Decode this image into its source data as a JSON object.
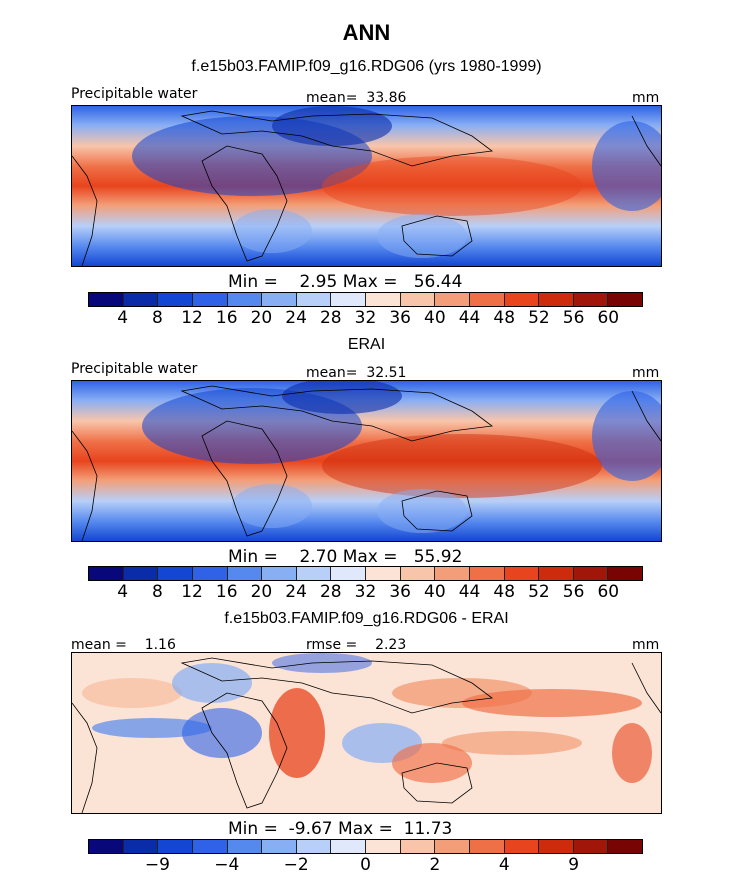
{
  "title": "ANN",
  "colors": {
    "abs_scale": [
      "#08087a",
      "#0a2ca8",
      "#1346d2",
      "#2f62e6",
      "#5689ee",
      "#88aef4",
      "#b8cff8",
      "#dfe9fb",
      "#fbe3d6",
      "#f8c5ab",
      "#f39e78",
      "#ef7047",
      "#e8441d",
      "#ce2a0c",
      "#a01608",
      "#780404"
    ],
    "diff_scale": [
      "#08087a",
      "#0a2ca8",
      "#1346d2",
      "#2f62e6",
      "#5689ee",
      "#88aef4",
      "#b8cff8",
      "#dfe9fb",
      "#fbe3d6",
      "#f8c5ab",
      "#f39e78",
      "#ef7047",
      "#e8441d",
      "#ce2a0c",
      "#a01608",
      "#780404"
    ]
  },
  "chart_data": [
    {
      "type": "heatmap",
      "title": "f.e15b03.FAMIP.f09_g16.RDG06 (yrs 1980-1999)",
      "variable": "Precipitable water",
      "mean_label": "mean=",
      "mean_value": "33.86",
      "units": "mm",
      "min_label": "Min =",
      "min_value": "2.95",
      "max_label": "Max =",
      "max_value": "56.44",
      "levels": [
        "4",
        "8",
        "12",
        "16",
        "20",
        "24",
        "28",
        "32",
        "36",
        "40",
        "44",
        "48",
        "52",
        "56",
        "60"
      ]
    },
    {
      "type": "heatmap",
      "title": "ERAI",
      "variable": "Precipitable water",
      "mean_label": "mean=",
      "mean_value": "32.51",
      "units": "mm",
      "min_label": "Min =",
      "min_value": "2.70",
      "max_label": "Max =",
      "max_value": "55.92",
      "levels": [
        "4",
        "8",
        "12",
        "16",
        "20",
        "24",
        "28",
        "32",
        "36",
        "40",
        "44",
        "48",
        "52",
        "56",
        "60"
      ]
    },
    {
      "type": "heatmap",
      "title": "f.e15b03.FAMIP.f09_g16.RDG06 - ERAI",
      "mean_label": "mean =",
      "mean_value": "1.16",
      "rmse_label": "rmse =",
      "rmse_value": "2.23",
      "units": "mm",
      "min_label": "Min =",
      "min_value": "-9.67",
      "max_label": "Max =",
      "max_value": "11.73",
      "levels": [
        "−9",
        "−4",
        "−2",
        "0",
        "2",
        "4",
        "9"
      ]
    }
  ]
}
